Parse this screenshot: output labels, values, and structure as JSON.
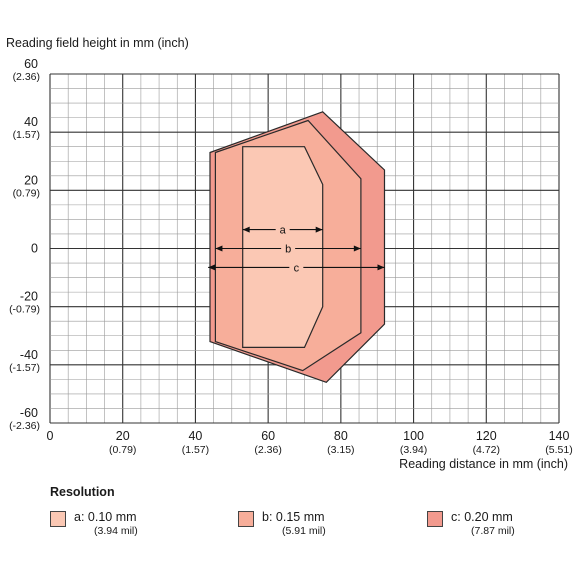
{
  "chart_data": {
    "type": "area",
    "ylabel": "Reading field height in mm (inch)",
    "xlabel": "Reading distance in mm (inch)",
    "xlim": [
      0,
      140
    ],
    "ylim": [
      -60,
      60
    ],
    "x_ticks": [
      {
        "value": 0,
        "label": "0",
        "sub": ""
      },
      {
        "value": 20,
        "label": "20",
        "sub": "(0.79)"
      },
      {
        "value": 40,
        "label": "40",
        "sub": "(1.57)"
      },
      {
        "value": 60,
        "label": "60",
        "sub": "(2.36)"
      },
      {
        "value": 80,
        "label": "80",
        "sub": "(3.15)"
      },
      {
        "value": 100,
        "label": "100",
        "sub": "(3.94)"
      },
      {
        "value": 120,
        "label": "120",
        "sub": "(4.72)"
      },
      {
        "value": 140,
        "label": "140",
        "sub": "(5.51)"
      }
    ],
    "y_ticks": [
      {
        "value": 60,
        "label": "60",
        "sub": "(2.36)"
      },
      {
        "value": 40,
        "label": "40",
        "sub": "(1.57)"
      },
      {
        "value": 20,
        "label": "20",
        "sub": "(0.79)"
      },
      {
        "value": 0,
        "label": "0",
        "sub": ""
      },
      {
        "value": -20,
        "label": "-20",
        "sub": "(-0.79)"
      },
      {
        "value": -40,
        "label": "-40",
        "sub": "(-1.57)"
      },
      {
        "value": -60,
        "label": "-60",
        "sub": "(-2.36)"
      }
    ],
    "minor_step": 5,
    "major_step": 20,
    "grid": true,
    "legend_title": "Resolution",
    "series": [
      {
        "key": "c",
        "name": "c: 0.20 mm",
        "sub": "(7.87 mil)",
        "color": "#f29a8e",
        "polygon": [
          [
            44,
            33
          ],
          [
            75,
            47
          ],
          [
            92,
            27
          ],
          [
            92,
            -26
          ],
          [
            76,
            -46
          ],
          [
            44,
            -32
          ]
        ],
        "arrow_from": 43.5,
        "arrow_to": 92,
        "arrow_y": -6.5
      },
      {
        "key": "b",
        "name": "b: 0.15 mm",
        "sub": "(5.91 mil)",
        "color": "#f7ae9a",
        "polygon": [
          [
            45.5,
            33
          ],
          [
            71,
            44
          ],
          [
            85.5,
            24
          ],
          [
            85.5,
            -29
          ],
          [
            69.5,
            -42
          ],
          [
            45.5,
            -32
          ]
        ],
        "arrow_from": 45.5,
        "arrow_to": 85.5,
        "arrow_y": 0
      },
      {
        "key": "a",
        "name": "a: 0.10 mm",
        "sub": "(3.94 mil)",
        "color": "#fbc8b4",
        "polygon": [
          [
            53,
            35
          ],
          [
            70,
            35
          ],
          [
            75,
            22
          ],
          [
            75,
            -20
          ],
          [
            70,
            -34
          ],
          [
            53,
            -34
          ]
        ],
        "arrow_from": 53,
        "arrow_to": 75,
        "arrow_y": 6.5
      }
    ]
  }
}
